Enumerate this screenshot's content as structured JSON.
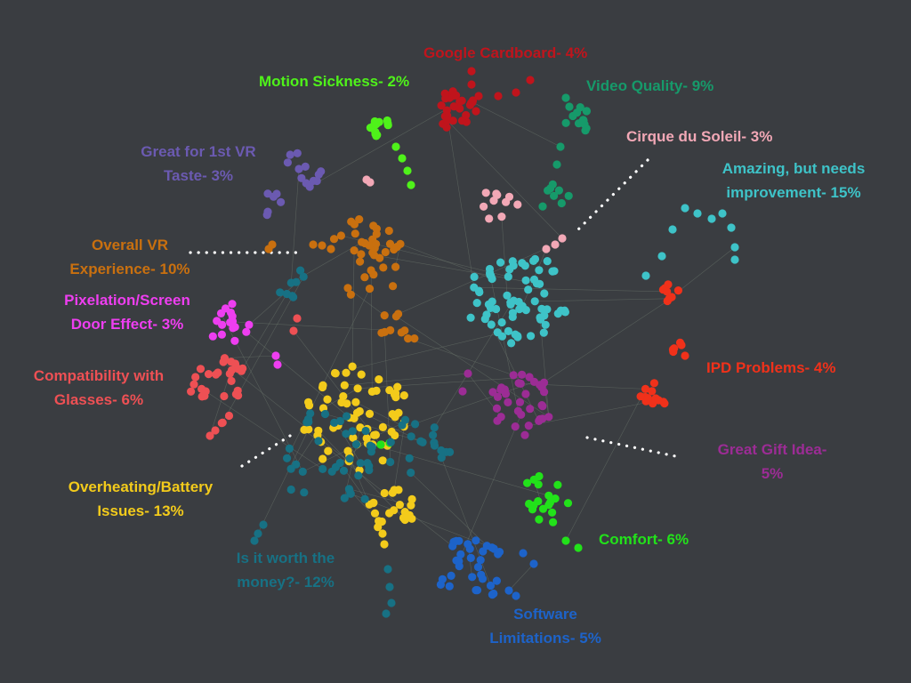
{
  "background": "#3a3d41",
  "link_color": "#6f7a70",
  "leader_color": "#ffffff",
  "clusters": [
    {
      "id": "google-cardboard",
      "lines": [
        "Google Cardboard- 4%"
      ],
      "name": "Google Cardboard",
      "percent": 4,
      "color": "#c0141c"
    },
    {
      "id": "motion-sickness",
      "lines": [
        "Motion Sickness- 2%"
      ],
      "name": "Motion Sickness",
      "percent": 2,
      "color": "#4ff21a"
    },
    {
      "id": "video-quality",
      "lines": [
        "Video Quality- 9%"
      ],
      "name": "Video Quality",
      "percent": 9,
      "color": "#169a6a"
    },
    {
      "id": "great-first-vr",
      "lines": [
        "Great for 1st VR",
        "Taste- 3%"
      ],
      "name": "Great for 1st VR Taste",
      "percent": 3,
      "color": "#6b5ab1"
    },
    {
      "id": "cirque-du-soleil",
      "lines": [
        "Cirque du Soleil- 3%"
      ],
      "name": "Cirque du Soleil",
      "percent": 3,
      "color": "#f2a8b6"
    },
    {
      "id": "amazing-needs-improvement",
      "lines": [
        "Amazing, but needs",
        "improvement- 15%"
      ],
      "name": "Amazing, but needs improvement",
      "percent": 15,
      "color": "#3ec3c8"
    },
    {
      "id": "overall-vr-experience",
      "lines": [
        "Overall VR",
        "Experience- 10%"
      ],
      "name": "Overall VR Experience",
      "percent": 10,
      "color": "#c9700f"
    },
    {
      "id": "pixelation-screen-door",
      "lines": [
        "Pixelation/Screen",
        "Door Effect- 3%"
      ],
      "name": "Pixelation/Screen Door Effect",
      "percent": 3,
      "color": "#ee3ef0"
    },
    {
      "id": "compatibility-glasses",
      "lines": [
        "Compatibility with",
        "Glasses- 6%"
      ],
      "name": "Compatibility with Glasses",
      "percent": 6,
      "color": "#ee5054"
    },
    {
      "id": "ipd-problems",
      "lines": [
        "IPD Problems- 4%"
      ],
      "name": "IPD Problems",
      "percent": 4,
      "color": "#f0311a"
    },
    {
      "id": "great-gift-idea",
      "lines": [
        "Great Gift Idea-",
        "5%"
      ],
      "name": "Great Gift Idea",
      "percent": 5,
      "color": "#9c2c95"
    },
    {
      "id": "overheating-battery",
      "lines": [
        "Overheating/Battery",
        "Issues- 13%"
      ],
      "name": "Overheating/Battery Issues",
      "percent": 13,
      "color": "#f3cb1b"
    },
    {
      "id": "comfort",
      "lines": [
        "Comfort- 6%"
      ],
      "name": "Comfort",
      "percent": 6,
      "color": "#22e21a"
    },
    {
      "id": "worth-the-money",
      "lines": [
        "Is it worth the",
        "money?- 12%"
      ],
      "name": "Is it worth the money?",
      "percent": 12,
      "color": "#177184"
    },
    {
      "id": "software-limitations",
      "lines": [
        "Software",
        "Limitations- 5%"
      ],
      "name": "Software Limitations",
      "percent": 5,
      "color": "#1d63c9"
    }
  ]
}
